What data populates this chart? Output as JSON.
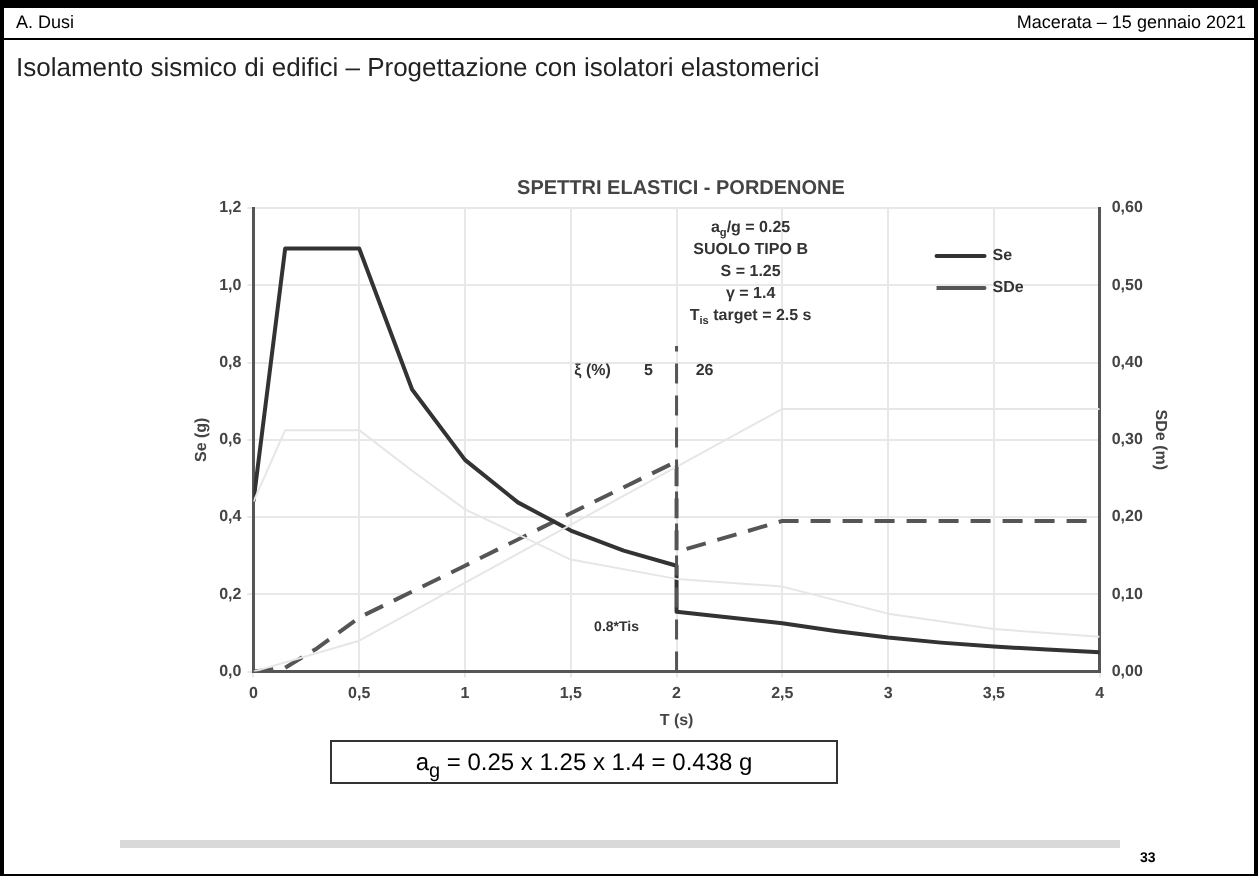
{
  "chart_data": {
    "type": "line",
    "title": "SPETTRI ELASTICI - PORDENONE",
    "subtitle": "Isolamento sismico di edifici – Progettazione con isolatori elastomerici",
    "xlabel": "T (s)",
    "ylabel": "Se (g)",
    "y2label": "SDe (m)",
    "annotations": [
      "A. Dusi",
      "Macerata – 15 gennaio 2021",
      "a$_{g}$/g = 0.25",
      "SUOLO TIPO B",
      "S = 1.25",
      "γ = 1.4",
      "T$_{is}$ target = 2.5 s",
      "a$_{g}$ = 0.25 x 1.25 x 1.4 = 0.438 g",
      "33",
      "ξ (%)",
      "5",
      "26",
      "0.8*Tis"
    ],
    "series": [
      {
        "color": "#e6e6e6",
        "line_style": "solid",
        "x": [
          0,
          0.15,
          0.5,
          0.75,
          1,
          1.5,
          2,
          2.5,
          3,
          3.5,
          4
        ],
        "values": [
          0.44,
          0.625,
          0.625,
          0.52,
          0.42,
          0.29,
          0.24,
          0.22,
          0.15,
          0.11,
          0.09
        ]
      },
      {
        "color": "#e6e6e6",
        "line_style": "solid",
        "axis": "y2",
        "x": [
          0,
          0.5,
          2.5,
          4
        ],
        "values": [
          0,
          0.04,
          0.34,
          0.34
        ]
      },
      {
        "name": "Se",
        "color": "#333333",
        "line_style": "solid",
        "x": [
          0,
          0.15,
          0.5,
          0.75,
          1,
          1.25,
          1.5,
          1.75,
          2,
          2,
          2.25,
          2.5,
          2.75,
          3,
          3.25,
          3.5,
          3.75,
          4
        ],
        "values": [
          0.44,
          1.095,
          1.095,
          0.73,
          0.548,
          0.438,
          0.365,
          0.313,
          0.274,
          0.155,
          0.14,
          0.125,
          0.105,
          0.088,
          0.075,
          0.065,
          0.057,
          0.05
        ]
      },
      {
        "name": "SDe",
        "color": "#555555",
        "line_style": "dashed",
        "axis": "y2",
        "x": [
          0,
          0.15,
          0.3,
          0.4,
          0.5,
          1,
          1.5,
          2,
          2,
          2.5,
          4
        ],
        "values": [
          0,
          0.005,
          0.03,
          0.05,
          0.07,
          0.137,
          0.205,
          0.272,
          0.155,
          0.195,
          0.195
        ]
      }
    ],
    "xlim": [
      0,
      4
    ],
    "xticks": [
      0,
      {
        "value": 0.5,
        "label": "0,5"
      },
      1,
      {
        "value": 1.5,
        "label": "1,5"
      },
      2,
      {
        "value": 2.5,
        "label": "2,5"
      },
      3,
      {
        "value": 3.5,
        "label": "3,5"
      },
      4
    ],
    "ylim": [
      0,
      1.2
    ],
    "yticks": [
      {
        "value": 0,
        "label": "0,0"
      },
      {
        "value": 0.2,
        "label": "0,2"
      },
      {
        "value": 0.4,
        "label": "0,4"
      },
      {
        "value": 0.6,
        "label": "0,6"
      },
      {
        "value": 0.8,
        "label": "0,8"
      },
      {
        "value": 1,
        "label": "1,0"
      },
      {
        "value": 1.2,
        "label": "1,2"
      }
    ],
    "y2lim": [
      0,
      0.6
    ],
    "y2ticks": [
      {
        "value": 0,
        "label": "0,00"
      },
      {
        "value": 0.1,
        "label": "0,10"
      },
      {
        "value": 0.2,
        "label": "0,20"
      },
      {
        "value": 0.3,
        "label": "0,30"
      },
      {
        "value": 0.4,
        "label": "0,40"
      },
      {
        "value": 0.5,
        "label": "0,50"
      },
      {
        "value": 0.6,
        "label": "0,60"
      }
    ],
    "ref_lines": [
      {
        "axis": "x",
        "value": 2,
        "color": "#555555",
        "line_style": "dashed"
      }
    ],
    "grid": true,
    "legend": "top right",
    "marker": "none"
  }
}
